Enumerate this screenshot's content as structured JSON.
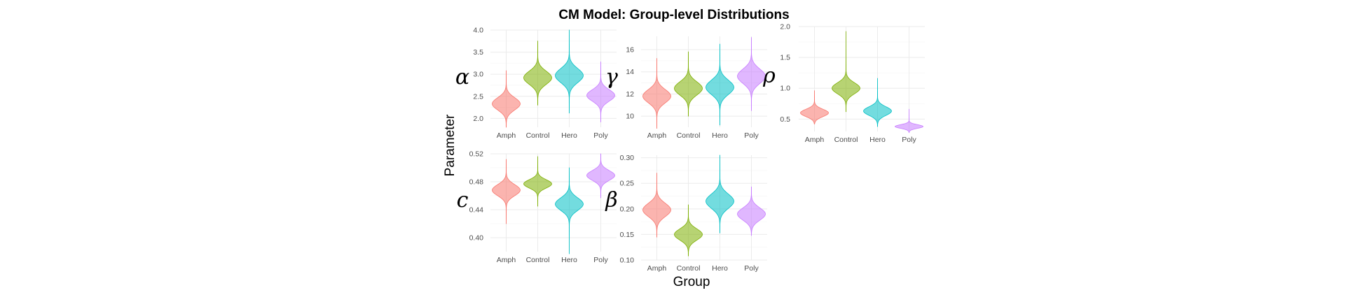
{
  "chart_data": {
    "type": "violin",
    "title": "CM Model: Group-level Distributions",
    "xlabel": "Group",
    "ylabel": "Parameter",
    "categories": [
      "Amph",
      "Control",
      "Hero",
      "Poly"
    ],
    "colors": {
      "Amph": "#F8766D",
      "Control": "#7CAE00",
      "Hero": "#00BFC4",
      "Poly": "#C77CFF"
    },
    "fill_opacity": 0.55,
    "grid": true,
    "legend": "none",
    "panels": [
      {
        "id": "alpha",
        "label": "α",
        "ylim": [
          1.8,
          4.0
        ],
        "yticks": [
          2.0,
          2.5,
          3.0,
          3.5,
          4.0
        ],
        "ytick_labels": [
          "2.0",
          "2.5",
          "3.0",
          "3.5",
          "4.0"
        ],
        "violins": [
          {
            "group": "Amph",
            "center": 2.33,
            "sd": 0.14,
            "min": 1.8,
            "max": 3.08
          },
          {
            "group": "Control",
            "center": 2.92,
            "sd": 0.15,
            "min": 2.3,
            "max": 3.75
          },
          {
            "group": "Hero",
            "center": 2.97,
            "sd": 0.16,
            "min": 2.12,
            "max": 4.0
          },
          {
            "group": "Poly",
            "center": 2.52,
            "sd": 0.13,
            "min": 1.92,
            "max": 3.28
          }
        ]
      },
      {
        "id": "gamma",
        "label": "γ",
        "ylim": [
          9.0,
          17.2
        ],
        "yticks": [
          10,
          12,
          14,
          16
        ],
        "ytick_labels": [
          "10",
          "12",
          "14",
          "16"
        ],
        "violins": [
          {
            "group": "Amph",
            "center": 11.8,
            "sd": 0.6,
            "min": 8.9,
            "max": 15.2
          },
          {
            "group": "Control",
            "center": 12.5,
            "sd": 0.6,
            "min": 10.0,
            "max": 15.8
          },
          {
            "group": "Hero",
            "center": 12.6,
            "sd": 0.65,
            "min": 9.2,
            "max": 16.5
          },
          {
            "group": "Poly",
            "center": 13.6,
            "sd": 0.65,
            "min": 10.5,
            "max": 17.1
          }
        ]
      },
      {
        "id": "rho",
        "label": "ρ",
        "ylim": [
          0.3,
          2.0
        ],
        "yticks": [
          0.5,
          1.0,
          1.5,
          2.0
        ],
        "ytick_labels": [
          "0.5",
          "1.0",
          "1.5",
          "2.0"
        ],
        "violins": [
          {
            "group": "Amph",
            "center": 0.6,
            "sd": 0.06,
            "min": 0.42,
            "max": 0.96
          },
          {
            "group": "Control",
            "center": 1.0,
            "sd": 0.09,
            "min": 0.62,
            "max": 1.92
          },
          {
            "group": "Hero",
            "center": 0.63,
            "sd": 0.07,
            "min": 0.38,
            "max": 1.16
          },
          {
            "group": "Poly",
            "center": 0.38,
            "sd": 0.03,
            "min": 0.28,
            "max": 0.66
          }
        ]
      },
      {
        "id": "c",
        "label": "c",
        "ylim": [
          0.38,
          0.52
        ],
        "yticks": [
          0.4,
          0.44,
          0.48,
          0.52
        ],
        "ytick_labels": [
          "0.40",
          "0.44",
          "0.48",
          "0.52"
        ],
        "violins": [
          {
            "group": "Amph",
            "center": 0.468,
            "sd": 0.008,
            "min": 0.42,
            "max": 0.512
          },
          {
            "group": "Control",
            "center": 0.477,
            "sd": 0.006,
            "min": 0.445,
            "max": 0.516
          },
          {
            "group": "Hero",
            "center": 0.448,
            "sd": 0.009,
            "min": 0.377,
            "max": 0.5
          },
          {
            "group": "Poly",
            "center": 0.489,
            "sd": 0.007,
            "min": 0.457,
            "max": 0.52
          }
        ]
      },
      {
        "id": "beta",
        "label": "β",
        "ylim": [
          0.1,
          0.305
        ],
        "yticks": [
          0.1,
          0.15,
          0.2,
          0.25,
          0.3
        ],
        "ytick_labels": [
          "0.10",
          "0.15",
          "0.20",
          "0.25",
          "0.30"
        ],
        "violins": [
          {
            "group": "Amph",
            "center": 0.198,
            "sd": 0.013,
            "min": 0.145,
            "max": 0.27
          },
          {
            "group": "Control",
            "center": 0.15,
            "sd": 0.011,
            "min": 0.108,
            "max": 0.208
          },
          {
            "group": "Hero",
            "center": 0.215,
            "sd": 0.014,
            "min": 0.153,
            "max": 0.305
          },
          {
            "group": "Poly",
            "center": 0.19,
            "sd": 0.012,
            "min": 0.148,
            "max": 0.243
          }
        ]
      }
    ]
  }
}
